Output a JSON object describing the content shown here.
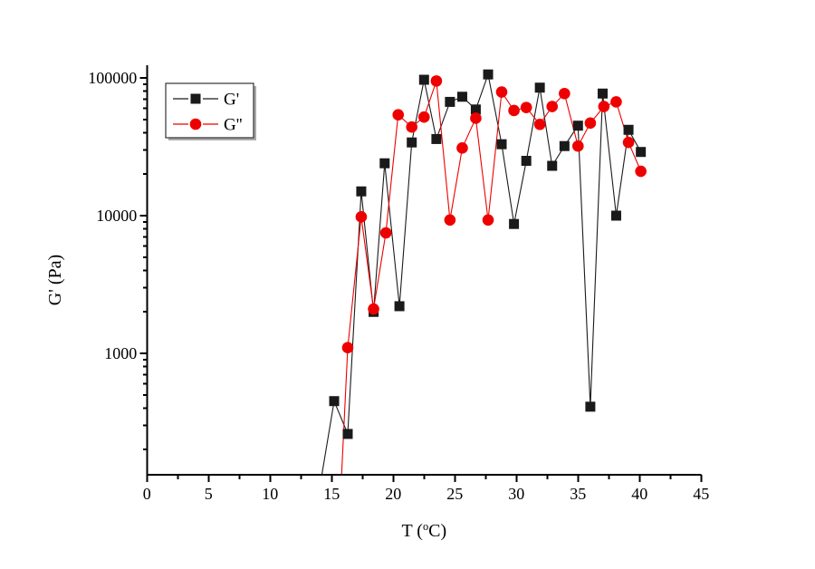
{
  "page": {
    "background": "#ffffff"
  },
  "chart_data": {
    "type": "line",
    "title": "",
    "xlabel": "T (°C)",
    "ylabel": "G' (Pa)",
    "grid": false,
    "x_axis": {
      "min": 0,
      "max": 45,
      "major_ticks": [
        0,
        5,
        10,
        15,
        20,
        25,
        30,
        35,
        40,
        45
      ],
      "minor_tick_step": 2.5
    },
    "y_axis": {
      "scale": "log",
      "min": 131,
      "max": 123500,
      "labeled_ticks": [
        {
          "value": 1000,
          "label": "1000"
        },
        {
          "value": 10000,
          "label": "10000"
        },
        {
          "value": 100000,
          "label": "100000"
        }
      ]
    },
    "legend": {
      "position": "upper-left-inside",
      "entries": [
        {
          "label": "G'",
          "series": "gprime"
        },
        {
          "label": "G''",
          "series": "gdprime"
        }
      ]
    },
    "series": [
      {
        "id": "gprime",
        "name": "G'",
        "marker": "square",
        "color": "#1a1a1a",
        "line_entry": [
          14.2,
          131
        ],
        "points": [
          [
            15.2,
            450
          ],
          [
            16.3,
            260
          ],
          [
            17.4,
            15000
          ],
          [
            18.4,
            2000
          ],
          [
            19.3,
            24000
          ],
          [
            20.5,
            2200
          ],
          [
            21.5,
            34000
          ],
          [
            22.5,
            97000
          ],
          [
            23.5,
            36000
          ],
          [
            24.6,
            67000
          ],
          [
            25.6,
            73000
          ],
          [
            26.7,
            59000
          ],
          [
            27.7,
            106000
          ],
          [
            28.8,
            33000
          ],
          [
            29.8,
            8700
          ],
          [
            30.8,
            25000
          ],
          [
            31.9,
            85000
          ],
          [
            32.9,
            23000
          ],
          [
            33.9,
            32000
          ],
          [
            35.0,
            45000
          ],
          [
            36.0,
            410
          ],
          [
            37.0,
            77000
          ],
          [
            38.1,
            10000
          ],
          [
            39.1,
            42000
          ],
          [
            40.1,
            29000
          ]
        ]
      },
      {
        "id": "gdprime",
        "name": "G''",
        "marker": "circle",
        "color": "#ee0000",
        "line_entry": [
          15.8,
          131
        ],
        "points": [
          [
            16.3,
            1100
          ],
          [
            17.4,
            9800
          ],
          [
            18.4,
            2100
          ],
          [
            19.4,
            7500
          ],
          [
            20.4,
            54000
          ],
          [
            21.5,
            44000
          ],
          [
            22.5,
            52000
          ],
          [
            23.5,
            95000
          ],
          [
            24.6,
            9300
          ],
          [
            25.6,
            31000
          ],
          [
            26.7,
            51000
          ],
          [
            27.7,
            9300
          ],
          [
            28.8,
            79000
          ],
          [
            29.8,
            58000
          ],
          [
            30.8,
            61000
          ],
          [
            31.9,
            46000
          ],
          [
            32.9,
            62000
          ],
          [
            33.9,
            77000
          ],
          [
            35.0,
            32000
          ],
          [
            36.0,
            47000
          ],
          [
            37.1,
            62000
          ],
          [
            38.1,
            67000
          ],
          [
            39.1,
            34000
          ],
          [
            40.1,
            21000
          ]
        ]
      }
    ]
  }
}
